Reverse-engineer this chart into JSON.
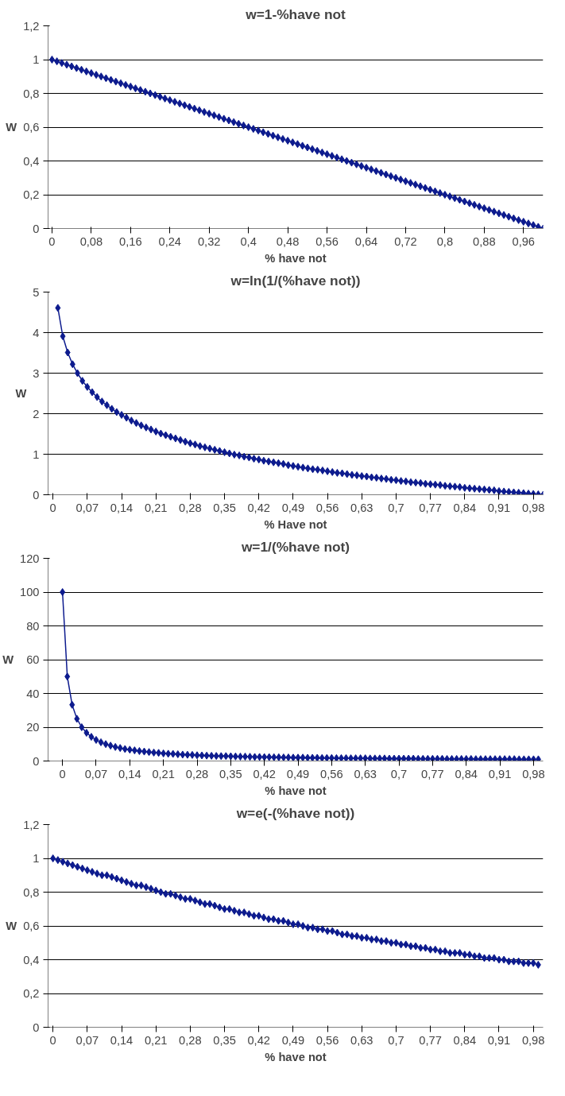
{
  "chart_data": [
    {
      "type": "line",
      "title": "w=1-%have not",
      "xlabel": "% have not",
      "ylabel": "W",
      "grid": "y",
      "marker": "diamond",
      "xlim": [
        -0.008,
        1.0
      ],
      "ylim": [
        0,
        1.2
      ],
      "xticks": [
        {
          "value": 0,
          "label": "0"
        },
        {
          "value": 0.08,
          "label": "0,08"
        },
        {
          "value": 0.16,
          "label": "0,16"
        },
        {
          "value": 0.24,
          "label": "0,24"
        },
        {
          "value": 0.32,
          "label": "0,32"
        },
        {
          "value": 0.4,
          "label": "0,4"
        },
        {
          "value": 0.48,
          "label": "0,48"
        },
        {
          "value": 0.56,
          "label": "0,56"
        },
        {
          "value": 0.64,
          "label": "0,64"
        },
        {
          "value": 0.72,
          "label": "0,72"
        },
        {
          "value": 0.8,
          "label": "0,8"
        },
        {
          "value": 0.88,
          "label": "0,88"
        },
        {
          "value": 0.96,
          "label": "0,96"
        }
      ],
      "yticks": [
        0,
        {
          "value": 0.2,
          "label": "0,2"
        },
        {
          "value": 0.4,
          "label": "0,4"
        },
        {
          "value": 0.6,
          "label": "0,6"
        },
        {
          "value": 0.8,
          "label": "0,8"
        },
        1,
        {
          "value": 1.2,
          "label": "1,2"
        }
      ],
      "series": [
        {
          "color": "#0d1b8e",
          "x": [
            0,
            0.01,
            0.02,
            0.03,
            0.04,
            0.05,
            0.06,
            0.07,
            0.08,
            0.09,
            0.1,
            0.11,
            0.12,
            0.13,
            0.14,
            0.15,
            0.16,
            0.17,
            0.18,
            0.19,
            0.2,
            0.21,
            0.22,
            0.23,
            0.24,
            0.25,
            0.26,
            0.27,
            0.28,
            0.29,
            0.3,
            0.31,
            0.32,
            0.33,
            0.34,
            0.35,
            0.36,
            0.37,
            0.38,
            0.39,
            0.4,
            0.41,
            0.42,
            0.43,
            0.44,
            0.45,
            0.46,
            0.47,
            0.48,
            0.49,
            0.5,
            0.51,
            0.52,
            0.53,
            0.54,
            0.55,
            0.56,
            0.57,
            0.58,
            0.59,
            0.6,
            0.61,
            0.62,
            0.63,
            0.64,
            0.65,
            0.66,
            0.67,
            0.68,
            0.69,
            0.7,
            0.71,
            0.72,
            0.73,
            0.74,
            0.75,
            0.76,
            0.77,
            0.78,
            0.79,
            0.8,
            0.81,
            0.82,
            0.83,
            0.84,
            0.85,
            0.86,
            0.87,
            0.88,
            0.89,
            0.9,
            0.91,
            0.92,
            0.93,
            0.94,
            0.95,
            0.96,
            0.97,
            0.98,
            0.99,
            1.0
          ],
          "values": [
            1,
            0.99,
            0.98,
            0.97,
            0.96,
            0.95,
            0.94,
            0.93,
            0.92,
            0.91,
            0.9,
            0.89,
            0.88,
            0.87,
            0.86,
            0.85,
            0.84,
            0.83,
            0.82,
            0.81,
            0.8,
            0.79,
            0.78,
            0.77,
            0.76,
            0.75,
            0.74,
            0.73,
            0.72,
            0.71,
            0.7,
            0.69,
            0.68,
            0.67,
            0.66,
            0.65,
            0.64,
            0.63,
            0.62,
            0.61,
            0.6,
            0.59,
            0.58,
            0.57,
            0.56,
            0.55,
            0.54,
            0.53,
            0.52,
            0.51,
            0.5,
            0.49,
            0.48,
            0.47,
            0.46,
            0.45,
            0.44,
            0.43,
            0.42,
            0.41,
            0.4,
            0.39,
            0.38,
            0.37,
            0.36,
            0.35,
            0.34,
            0.33,
            0.32,
            0.31,
            0.3,
            0.29,
            0.28,
            0.27,
            0.26,
            0.25,
            0.24,
            0.23,
            0.22,
            0.21,
            0.2,
            0.19,
            0.18,
            0.17,
            0.16,
            0.15,
            0.14,
            0.13,
            0.12,
            0.11,
            0.1,
            0.09,
            0.08,
            0.07,
            0.06,
            0.05,
            0.04,
            0.03,
            0.02,
            0.01,
            0
          ]
        }
      ]
    },
    {
      "type": "line",
      "title": "w=ln(1/(%have not))",
      "xlabel": "% Have not",
      "ylabel": "W",
      "grid": "y",
      "marker": "diamond",
      "xlim": [
        -0.01,
        1.0
      ],
      "ylim": [
        0,
        5
      ],
      "xticks": [
        {
          "value": 0,
          "label": "0"
        },
        {
          "value": 0.07,
          "label": "0,07"
        },
        {
          "value": 0.14,
          "label": "0,14"
        },
        {
          "value": 0.21,
          "label": "0,21"
        },
        {
          "value": 0.28,
          "label": "0,28"
        },
        {
          "value": 0.35,
          "label": "0,35"
        },
        {
          "value": 0.42,
          "label": "0,42"
        },
        {
          "value": 0.49,
          "label": "0,49"
        },
        {
          "value": 0.56,
          "label": "0,56"
        },
        {
          "value": 0.63,
          "label": "0,63"
        },
        {
          "value": 0.7,
          "label": "0,7"
        },
        {
          "value": 0.77,
          "label": "0,77"
        },
        {
          "value": 0.84,
          "label": "0,84"
        },
        {
          "value": 0.91,
          "label": "0,91"
        },
        {
          "value": 0.98,
          "label": "0,98"
        }
      ],
      "yticks": [
        0,
        1,
        2,
        3,
        4,
        5
      ],
      "series": [
        {
          "color": "#0d1b8e",
          "x": [
            0.01,
            0.02,
            0.03,
            0.04,
            0.05,
            0.06,
            0.07,
            0.08,
            0.09,
            0.1,
            0.11,
            0.12,
            0.13,
            0.14,
            0.15,
            0.16,
            0.17,
            0.18,
            0.19,
            0.2,
            0.21,
            0.22,
            0.23,
            0.24,
            0.25,
            0.26,
            0.27,
            0.28,
            0.29,
            0.3,
            0.31,
            0.32,
            0.33,
            0.34,
            0.35,
            0.36,
            0.37,
            0.38,
            0.39,
            0.4,
            0.41,
            0.42,
            0.43,
            0.44,
            0.45,
            0.46,
            0.47,
            0.48,
            0.49,
            0.5,
            0.51,
            0.52,
            0.53,
            0.54,
            0.55,
            0.56,
            0.57,
            0.58,
            0.59,
            0.6,
            0.61,
            0.62,
            0.63,
            0.64,
            0.65,
            0.66,
            0.67,
            0.68,
            0.69,
            0.7,
            0.71,
            0.72,
            0.73,
            0.74,
            0.75,
            0.76,
            0.77,
            0.78,
            0.79,
            0.8,
            0.81,
            0.82,
            0.83,
            0.84,
            0.85,
            0.86,
            0.87,
            0.88,
            0.89,
            0.9,
            0.91,
            0.92,
            0.93,
            0.94,
            0.95,
            0.96,
            0.97,
            0.98,
            0.99,
            1.0
          ],
          "values": [
            4.61,
            3.91,
            3.51,
            3.22,
            3.0,
            2.81,
            2.66,
            2.53,
            2.41,
            2.3,
            2.21,
            2.12,
            2.04,
            1.97,
            1.9,
            1.83,
            1.77,
            1.71,
            1.66,
            1.61,
            1.56,
            1.51,
            1.47,
            1.43,
            1.39,
            1.35,
            1.31,
            1.27,
            1.24,
            1.2,
            1.17,
            1.14,
            1.11,
            1.08,
            1.05,
            1.02,
            0.99,
            0.97,
            0.94,
            0.92,
            0.89,
            0.87,
            0.84,
            0.82,
            0.8,
            0.78,
            0.76,
            0.73,
            0.71,
            0.69,
            0.67,
            0.65,
            0.63,
            0.62,
            0.6,
            0.58,
            0.56,
            0.54,
            0.53,
            0.51,
            0.49,
            0.48,
            0.46,
            0.45,
            0.43,
            0.42,
            0.4,
            0.39,
            0.37,
            0.36,
            0.34,
            0.33,
            0.31,
            0.3,
            0.29,
            0.27,
            0.26,
            0.25,
            0.24,
            0.22,
            0.21,
            0.2,
            0.19,
            0.17,
            0.16,
            0.15,
            0.14,
            0.13,
            0.12,
            0.11,
            0.09,
            0.08,
            0.07,
            0.06,
            0.05,
            0.04,
            0.03,
            0.02,
            0.01,
            0
          ]
        }
      ]
    },
    {
      "type": "line",
      "title": "w=1/(%have not)",
      "xlabel": "% have not",
      "ylabel": "W",
      "grid": "y",
      "marker": "diamond",
      "xlim": [
        -0.03,
        1.0
      ],
      "ylim": [
        0,
        120
      ],
      "xticks": [
        {
          "value": 0,
          "label": "0"
        },
        {
          "value": 0.07,
          "label": "0,07"
        },
        {
          "value": 0.14,
          "label": "0,14"
        },
        {
          "value": 0.21,
          "label": "0,21"
        },
        {
          "value": 0.28,
          "label": "0,28"
        },
        {
          "value": 0.35,
          "label": "0,35"
        },
        {
          "value": 0.42,
          "label": "0,42"
        },
        {
          "value": 0.49,
          "label": "0,49"
        },
        {
          "value": 0.56,
          "label": "0,56"
        },
        {
          "value": 0.63,
          "label": "0,63"
        },
        {
          "value": 0.7,
          "label": "0,7"
        },
        {
          "value": 0.77,
          "label": "0,77"
        },
        {
          "value": 0.84,
          "label": "0,84"
        },
        {
          "value": 0.91,
          "label": "0,91"
        },
        {
          "value": 0.98,
          "label": "0,98"
        }
      ],
      "yticks": [
        0,
        20,
        40,
        60,
        80,
        100,
        120
      ],
      "series": [
        {
          "color": "#0d1b8e",
          "x": [
            0,
            0.01,
            0.02,
            0.03,
            0.04,
            0.05,
            0.06,
            0.07,
            0.08,
            0.09,
            0.1,
            0.11,
            0.12,
            0.13,
            0.14,
            0.15,
            0.16,
            0.17,
            0.18,
            0.19,
            0.2,
            0.21,
            0.22,
            0.23,
            0.24,
            0.25,
            0.26,
            0.27,
            0.28,
            0.29,
            0.3,
            0.31,
            0.32,
            0.33,
            0.34,
            0.35,
            0.36,
            0.37,
            0.38,
            0.39,
            0.4,
            0.41,
            0.42,
            0.43,
            0.44,
            0.45,
            0.46,
            0.47,
            0.48,
            0.49,
            0.5,
            0.51,
            0.52,
            0.53,
            0.54,
            0.55,
            0.56,
            0.57,
            0.58,
            0.59,
            0.6,
            0.61,
            0.62,
            0.63,
            0.64,
            0.65,
            0.66,
            0.67,
            0.68,
            0.69,
            0.7,
            0.71,
            0.72,
            0.73,
            0.74,
            0.75,
            0.76,
            0.77,
            0.78,
            0.79,
            0.8,
            0.81,
            0.82,
            0.83,
            0.84,
            0.85,
            0.86,
            0.87,
            0.88,
            0.89,
            0.9,
            0.91,
            0.92,
            0.93,
            0.94,
            0.95,
            0.96,
            0.97,
            0.98,
            0.99
          ],
          "values": [
            100,
            50,
            33.3,
            25,
            20,
            16.7,
            14.3,
            12.5,
            11.1,
            10,
            9.1,
            8.3,
            7.7,
            7.1,
            6.7,
            6.3,
            5.9,
            5.6,
            5.3,
            5,
            4.8,
            4.5,
            4.3,
            4.2,
            4,
            3.8,
            3.7,
            3.6,
            3.4,
            3.3,
            3.2,
            3.1,
            3,
            2.9,
            2.9,
            2.8,
            2.7,
            2.6,
            2.6,
            2.5,
            2.4,
            2.4,
            2.3,
            2.3,
            2.2,
            2.2,
            2.1,
            2.1,
            2,
            2,
            2,
            1.9,
            1.9,
            1.9,
            1.8,
            1.8,
            1.8,
            1.7,
            1.7,
            1.7,
            1.6,
            1.6,
            1.6,
            1.6,
            1.5,
            1.5,
            1.5,
            1.5,
            1.4,
            1.4,
            1.4,
            1.4,
            1.4,
            1.4,
            1.3,
            1.3,
            1.3,
            1.3,
            1.3,
            1.3,
            1.2,
            1.2,
            1.2,
            1.2,
            1.2,
            1.2,
            1.1,
            1.1,
            1.1,
            1.1,
            1.1,
            1.1,
            1.1,
            1.1,
            1.1,
            1,
            1,
            1,
            1,
            1
          ]
        }
      ]
    },
    {
      "type": "line",
      "title": "w=e(-(%have not))",
      "xlabel": "% have not",
      "ylabel": "W",
      "grid": "y",
      "marker": "diamond",
      "xlim": [
        -0.01,
        1.0
      ],
      "ylim": [
        0,
        1.2
      ],
      "xticks": [
        {
          "value": 0,
          "label": "0"
        },
        {
          "value": 0.07,
          "label": "0,07"
        },
        {
          "value": 0.14,
          "label": "0,14"
        },
        {
          "value": 0.21,
          "label": "0,21"
        },
        {
          "value": 0.28,
          "label": "0,28"
        },
        {
          "value": 0.35,
          "label": "0,35"
        },
        {
          "value": 0.42,
          "label": "0,42"
        },
        {
          "value": 0.49,
          "label": "0,49"
        },
        {
          "value": 0.56,
          "label": "0,56"
        },
        {
          "value": 0.63,
          "label": "0,63"
        },
        {
          "value": 0.7,
          "label": "0,7"
        },
        {
          "value": 0.77,
          "label": "0,77"
        },
        {
          "value": 0.84,
          "label": "0,84"
        },
        {
          "value": 0.91,
          "label": "0,91"
        },
        {
          "value": 0.98,
          "label": "0,98"
        }
      ],
      "yticks": [
        0,
        {
          "value": 0.2,
          "label": "0,2"
        },
        {
          "value": 0.4,
          "label": "0,4"
        },
        {
          "value": 0.6,
          "label": "0,6"
        },
        {
          "value": 0.8,
          "label": "0,8"
        },
        1,
        {
          "value": 1.2,
          "label": "1,2"
        }
      ],
      "series": [
        {
          "color": "#0d1b8e",
          "x": [
            0,
            0.01,
            0.02,
            0.03,
            0.04,
            0.05,
            0.06,
            0.07,
            0.08,
            0.09,
            0.1,
            0.11,
            0.12,
            0.13,
            0.14,
            0.15,
            0.16,
            0.17,
            0.18,
            0.19,
            0.2,
            0.21,
            0.22,
            0.23,
            0.24,
            0.25,
            0.26,
            0.27,
            0.28,
            0.29,
            0.3,
            0.31,
            0.32,
            0.33,
            0.34,
            0.35,
            0.36,
            0.37,
            0.38,
            0.39,
            0.4,
            0.41,
            0.42,
            0.43,
            0.44,
            0.45,
            0.46,
            0.47,
            0.48,
            0.49,
            0.5,
            0.51,
            0.52,
            0.53,
            0.54,
            0.55,
            0.56,
            0.57,
            0.58,
            0.59,
            0.6,
            0.61,
            0.62,
            0.63,
            0.64,
            0.65,
            0.66,
            0.67,
            0.68,
            0.69,
            0.7,
            0.71,
            0.72,
            0.73,
            0.74,
            0.75,
            0.76,
            0.77,
            0.78,
            0.79,
            0.8,
            0.81,
            0.82,
            0.83,
            0.84,
            0.85,
            0.86,
            0.87,
            0.88,
            0.89,
            0.9,
            0.91,
            0.92,
            0.93,
            0.94,
            0.95,
            0.96,
            0.97,
            0.98,
            0.99
          ],
          "values": [
            1,
            0.99,
            0.98,
            0.97,
            0.96,
            0.95,
            0.94,
            0.93,
            0.92,
            0.91,
            0.9,
            0.9,
            0.89,
            0.88,
            0.87,
            0.86,
            0.85,
            0.84,
            0.84,
            0.83,
            0.82,
            0.81,
            0.8,
            0.79,
            0.79,
            0.78,
            0.77,
            0.76,
            0.76,
            0.75,
            0.74,
            0.73,
            0.73,
            0.72,
            0.71,
            0.7,
            0.7,
            0.69,
            0.68,
            0.68,
            0.67,
            0.66,
            0.66,
            0.65,
            0.64,
            0.64,
            0.63,
            0.63,
            0.62,
            0.61,
            0.61,
            0.6,
            0.59,
            0.59,
            0.58,
            0.58,
            0.57,
            0.57,
            0.56,
            0.55,
            0.55,
            0.54,
            0.54,
            0.53,
            0.53,
            0.52,
            0.52,
            0.51,
            0.51,
            0.5,
            0.5,
            0.49,
            0.49,
            0.48,
            0.48,
            0.47,
            0.47,
            0.46,
            0.46,
            0.45,
            0.45,
            0.44,
            0.44,
            0.44,
            0.43,
            0.43,
            0.42,
            0.42,
            0.41,
            0.41,
            0.41,
            0.4,
            0.4,
            0.39,
            0.39,
            0.39,
            0.38,
            0.38,
            0.38,
            0.37
          ]
        }
      ]
    }
  ]
}
